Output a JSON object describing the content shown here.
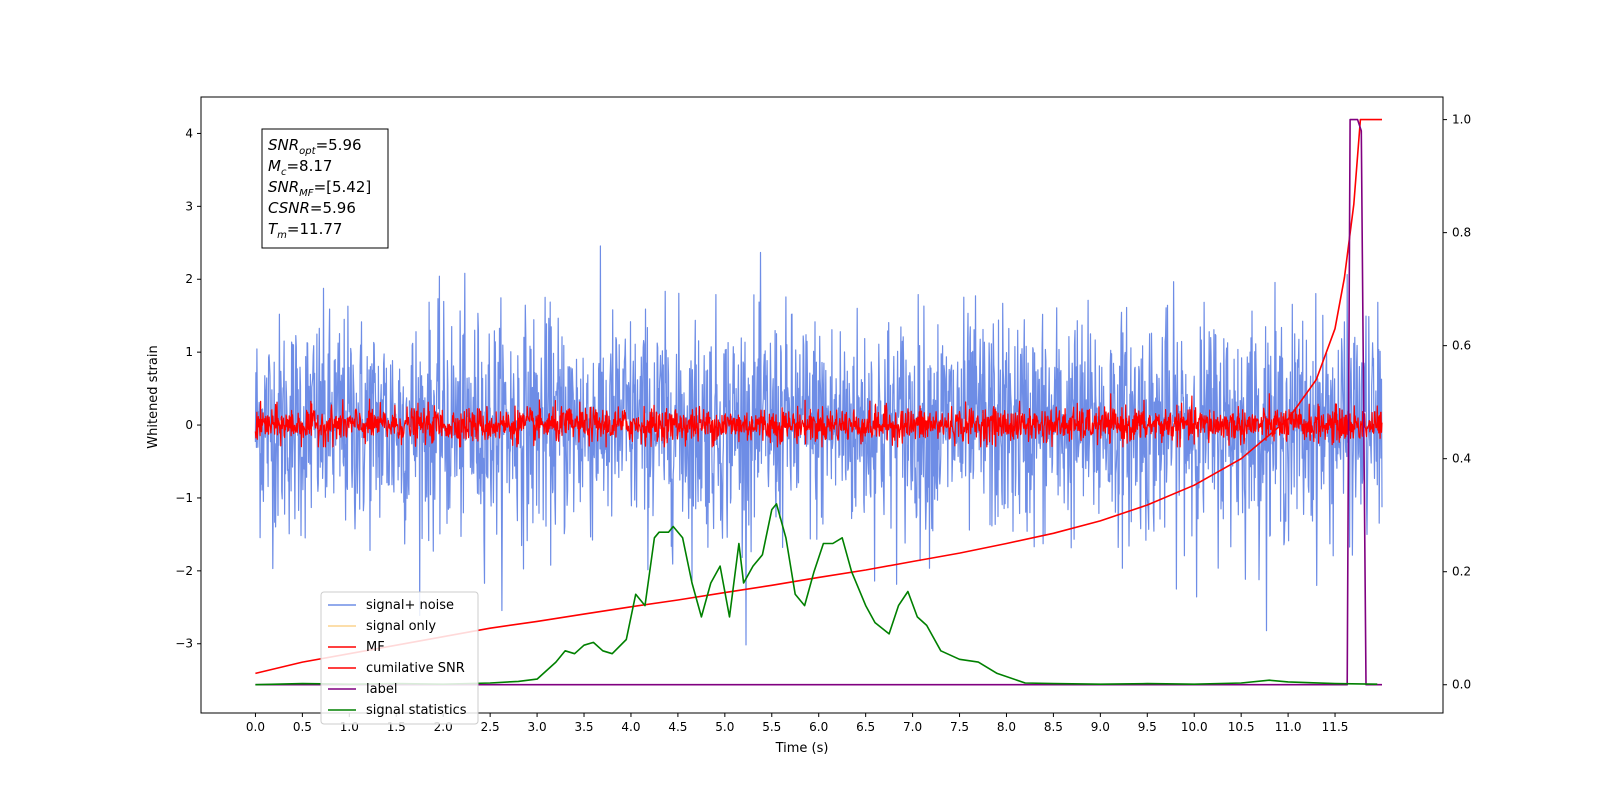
{
  "chart_data": {
    "type": "line",
    "xlabel": "Time (s)",
    "ylabel": "Whitened strain",
    "xlim": [
      -0.58,
      12.65
    ],
    "ylim_left": [
      -3.95,
      4.5
    ],
    "ylim_right": [
      -0.05,
      1.04
    ],
    "xticks": [
      0.0,
      0.5,
      1.0,
      1.5,
      2.0,
      2.5,
      3.0,
      3.5,
      4.0,
      4.5,
      5.0,
      5.5,
      6.0,
      6.5,
      7.0,
      7.5,
      8.0,
      8.5,
      9.0,
      9.5,
      10.0,
      10.5,
      11.0,
      11.5
    ],
    "xtick_labels": [
      "0.0",
      "0.5",
      "1.0",
      "1.5",
      "2.0",
      "2.5",
      "3.0",
      "3.5",
      "4.0",
      "4.5",
      "5.0",
      "5.5",
      "6.0",
      "6.5",
      "7.0",
      "7.5",
      "8.0",
      "8.5",
      "9.0",
      "9.5",
      "10.0",
      "10.5",
      "11.0",
      "11.5"
    ],
    "yticks_left": [
      -3,
      -2,
      -1,
      0,
      1,
      2,
      3,
      4
    ],
    "ytick_labels_left": [
      "−3",
      "−2",
      "−1",
      "0",
      "1",
      "2",
      "3",
      "4"
    ],
    "yticks_right": [
      0.0,
      0.2,
      0.4,
      0.6,
      0.8,
      1.0
    ],
    "ytick_labels_right": [
      "0.0",
      "0.2",
      "0.4",
      "0.6",
      "0.8",
      "1.0"
    ],
    "grid": false,
    "legend_position": "lower-left",
    "legend": [
      {
        "name": "signal+ noise",
        "color": "#6e8de6"
      },
      {
        "name": "signal only",
        "color": "#fbd38d"
      },
      {
        "name": "MF",
        "color": "#ff0000"
      },
      {
        "name": "cumilative SNR",
        "color": "#ff0000"
      },
      {
        "name": "label",
        "color": "#800080"
      },
      {
        "name": "signal statistics",
        "color": "#008000"
      }
    ],
    "annotation_box": [
      {
        "name": "SNR",
        "sub": "opt",
        "value": "=5.96"
      },
      {
        "name": "M",
        "sub": "c",
        "value": "=8.17"
      },
      {
        "name": "SNR",
        "sub": "MF",
        "value": "=[5.42]"
      },
      {
        "name": "CSNR",
        "sub": "",
        "value": "=5.96"
      },
      {
        "name": "T",
        "sub": "m",
        "value": "=11.77"
      }
    ],
    "series": [
      {
        "name": "signal+ noise",
        "axis": "left",
        "kind": "noise",
        "x_range": [
          0.0,
          12.0
        ],
        "approx_std": 0.75,
        "envelope": [
          -3.3,
          4.2
        ],
        "color": "#6e8de6"
      },
      {
        "name": "MF",
        "axis": "left",
        "kind": "noise",
        "x_range": [
          0.0,
          12.0
        ],
        "approx_std": 0.12,
        "envelope": [
          -0.3,
          1.0
        ],
        "color": "#ff0000"
      },
      {
        "name": "cumilative SNR",
        "axis": "right",
        "color": "#ff0000",
        "x": [
          0.0,
          0.5,
          1.0,
          1.5,
          2.0,
          2.5,
          3.0,
          3.5,
          4.0,
          4.5,
          5.0,
          5.5,
          6.0,
          6.5,
          7.0,
          7.5,
          8.0,
          8.5,
          9.0,
          9.5,
          10.0,
          10.5,
          11.0,
          11.3,
          11.5,
          11.6,
          11.7,
          11.77,
          11.8,
          12.0
        ],
        "y": [
          0.02,
          0.04,
          0.055,
          0.07,
          0.085,
          0.1,
          0.112,
          0.125,
          0.138,
          0.15,
          0.163,
          0.176,
          0.19,
          0.203,
          0.218,
          0.233,
          0.25,
          0.268,
          0.29,
          0.318,
          0.353,
          0.4,
          0.47,
          0.54,
          0.63,
          0.72,
          0.85,
          1.0,
          1.0,
          1.0
        ]
      },
      {
        "name": "label",
        "axis": "right",
        "color": "#800080",
        "x": [
          0.0,
          11.6,
          11.63,
          11.66,
          11.74,
          11.78,
          11.83,
          12.0
        ],
        "y": [
          0.0,
          0.0,
          0.0,
          1.0,
          1.0,
          0.98,
          0.0,
          0.0
        ]
      },
      {
        "name": "signal statistics",
        "axis": "right",
        "color": "#008000",
        "x": [
          0.0,
          0.5,
          1.0,
          1.5,
          2.0,
          2.5,
          2.8,
          3.0,
          3.2,
          3.3,
          3.4,
          3.5,
          3.6,
          3.7,
          3.8,
          3.95,
          4.05,
          4.15,
          4.25,
          4.3,
          4.4,
          4.45,
          4.55,
          4.65,
          4.75,
          4.85,
          4.95,
          5.05,
          5.15,
          5.2,
          5.3,
          5.4,
          5.5,
          5.55,
          5.65,
          5.75,
          5.85,
          5.95,
          6.05,
          6.15,
          6.25,
          6.35,
          6.5,
          6.6,
          6.75,
          6.85,
          6.95,
          7.05,
          7.15,
          7.3,
          7.5,
          7.7,
          7.9,
          8.2,
          8.5,
          9.0,
          9.5,
          10.0,
          10.5,
          10.8,
          11.0,
          11.5,
          11.95
        ],
        "y": [
          0.0,
          0.002,
          0.001,
          0.002,
          0.001,
          0.003,
          0.006,
          0.01,
          0.04,
          0.06,
          0.055,
          0.07,
          0.075,
          0.06,
          0.055,
          0.08,
          0.16,
          0.14,
          0.26,
          0.27,
          0.27,
          0.28,
          0.26,
          0.18,
          0.12,
          0.18,
          0.21,
          0.12,
          0.25,
          0.18,
          0.21,
          0.23,
          0.31,
          0.32,
          0.26,
          0.16,
          0.14,
          0.2,
          0.25,
          0.25,
          0.26,
          0.2,
          0.14,
          0.11,
          0.09,
          0.14,
          0.165,
          0.12,
          0.105,
          0.06,
          0.045,
          0.04,
          0.02,
          0.003,
          0.002,
          0.001,
          0.002,
          0.001,
          0.003,
          0.008,
          0.005,
          0.002,
          0.001
        ]
      }
    ]
  }
}
